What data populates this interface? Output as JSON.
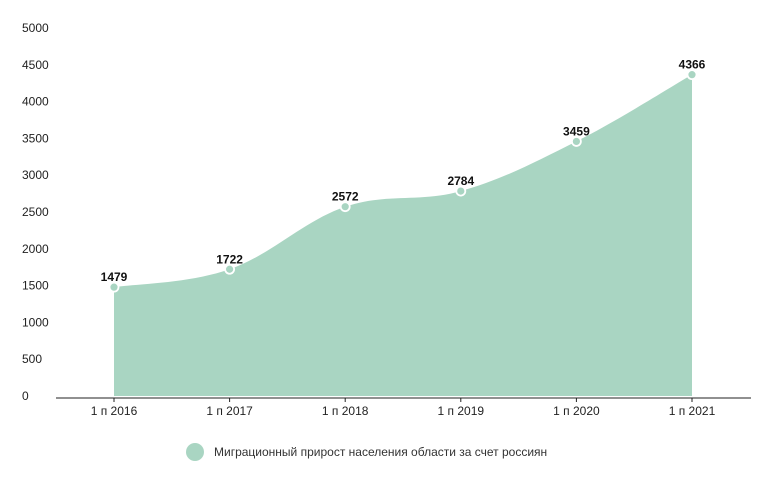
{
  "chart_data": {
    "type": "area",
    "categories": [
      "1 п 2016",
      "1 п 2017",
      "1 п 2018",
      "1 п 2019",
      "1 п 2020",
      "1 п 2021"
    ],
    "series": [
      {
        "name": "Миграционный прирост населения области за счет россиян",
        "values": [
          1479,
          1722,
          2572,
          2784,
          3459,
          4366
        ]
      }
    ],
    "data_labels": [
      "1479",
      "1722",
      "2572",
      "2784",
      "3459",
      "4366"
    ],
    "yticks": [
      0,
      500,
      1000,
      1500,
      2000,
      2500,
      3000,
      3500,
      4000,
      4500,
      5000
    ],
    "ylim": [
      0,
      5000
    ],
    "title": "",
    "xlabel": "",
    "ylabel": "",
    "grid": false,
    "legend_position": "bottom",
    "colors": {
      "fill": "#a9d5c2",
      "marker": "#a9d5c2",
      "axis": "#222222"
    }
  }
}
